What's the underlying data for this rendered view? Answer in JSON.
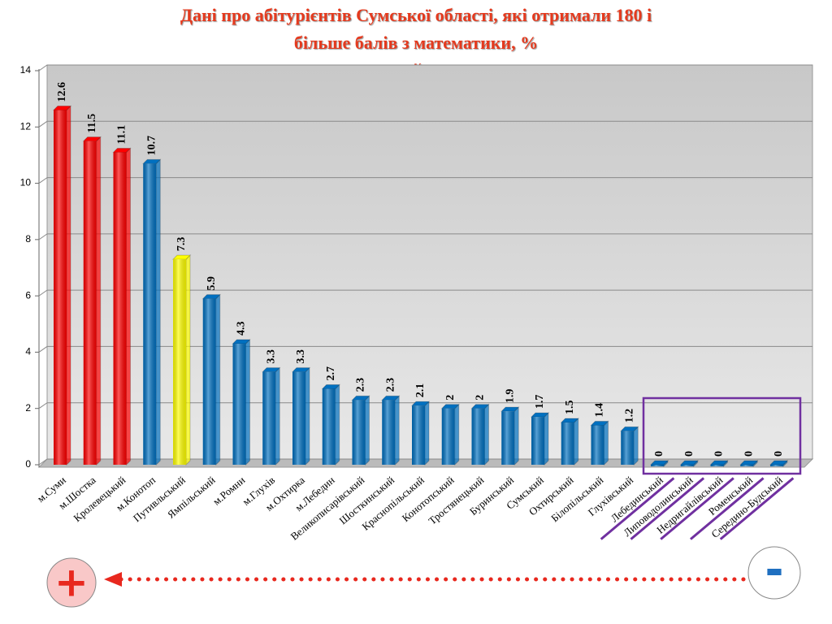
{
  "chart_data": {
    "type": "bar",
    "title": "Дані про абітурієнтів Сумської області, які отримали 180 і більше балів з математики, %",
    "subtitle": "рейтинг",
    "categories": [
      "м.Суми",
      "м.Шостка",
      "Кролевецький",
      "м.Конотоп",
      "Путивльський",
      "Ямпільський",
      "м.Ромни",
      "м.Глухів",
      "м.Охтирка",
      "м.Лебедин",
      "Великописарівський",
      "Шосткинський",
      "Краснопільський",
      "Конотопський",
      "Тростянецький",
      "Буринський",
      "Сумський",
      "Охтирський",
      "Білопільський",
      "Глухівський",
      "Лебединський",
      "Липоводолинський",
      "Недригайлівський",
      "Роменський",
      "Середино-Будський"
    ],
    "values": [
      12.6,
      11.5,
      11.1,
      10.7,
      7.3,
      5.9,
      4.3,
      3.3,
      3.3,
      2.7,
      2.3,
      2.3,
      2.1,
      2,
      2,
      1.9,
      1.7,
      1.5,
      1.4,
      1.2,
      0,
      0,
      0,
      0,
      0
    ],
    "colors": [
      "#ff0000",
      "#ff0000",
      "#ff0000",
      "#0070c0",
      "#ffff00",
      "#0070c0",
      "#0070c0",
      "#0070c0",
      "#0070c0",
      "#0070c0",
      "#0070c0",
      "#0070c0",
      "#0070c0",
      "#0070c0",
      "#0070c0",
      "#0070c0",
      "#0070c0",
      "#0070c0",
      "#0070c0",
      "#0070c0",
      "#0070c0",
      "#0070c0",
      "#0070c0",
      "#0070c0",
      "#0070c0"
    ],
    "ylim": [
      0,
      14
    ],
    "yticks": [
      0,
      2,
      4,
      6,
      8,
      10,
      12,
      14
    ],
    "grid": true,
    "markers": {
      "plus": "+",
      "minus": "-"
    }
  }
}
